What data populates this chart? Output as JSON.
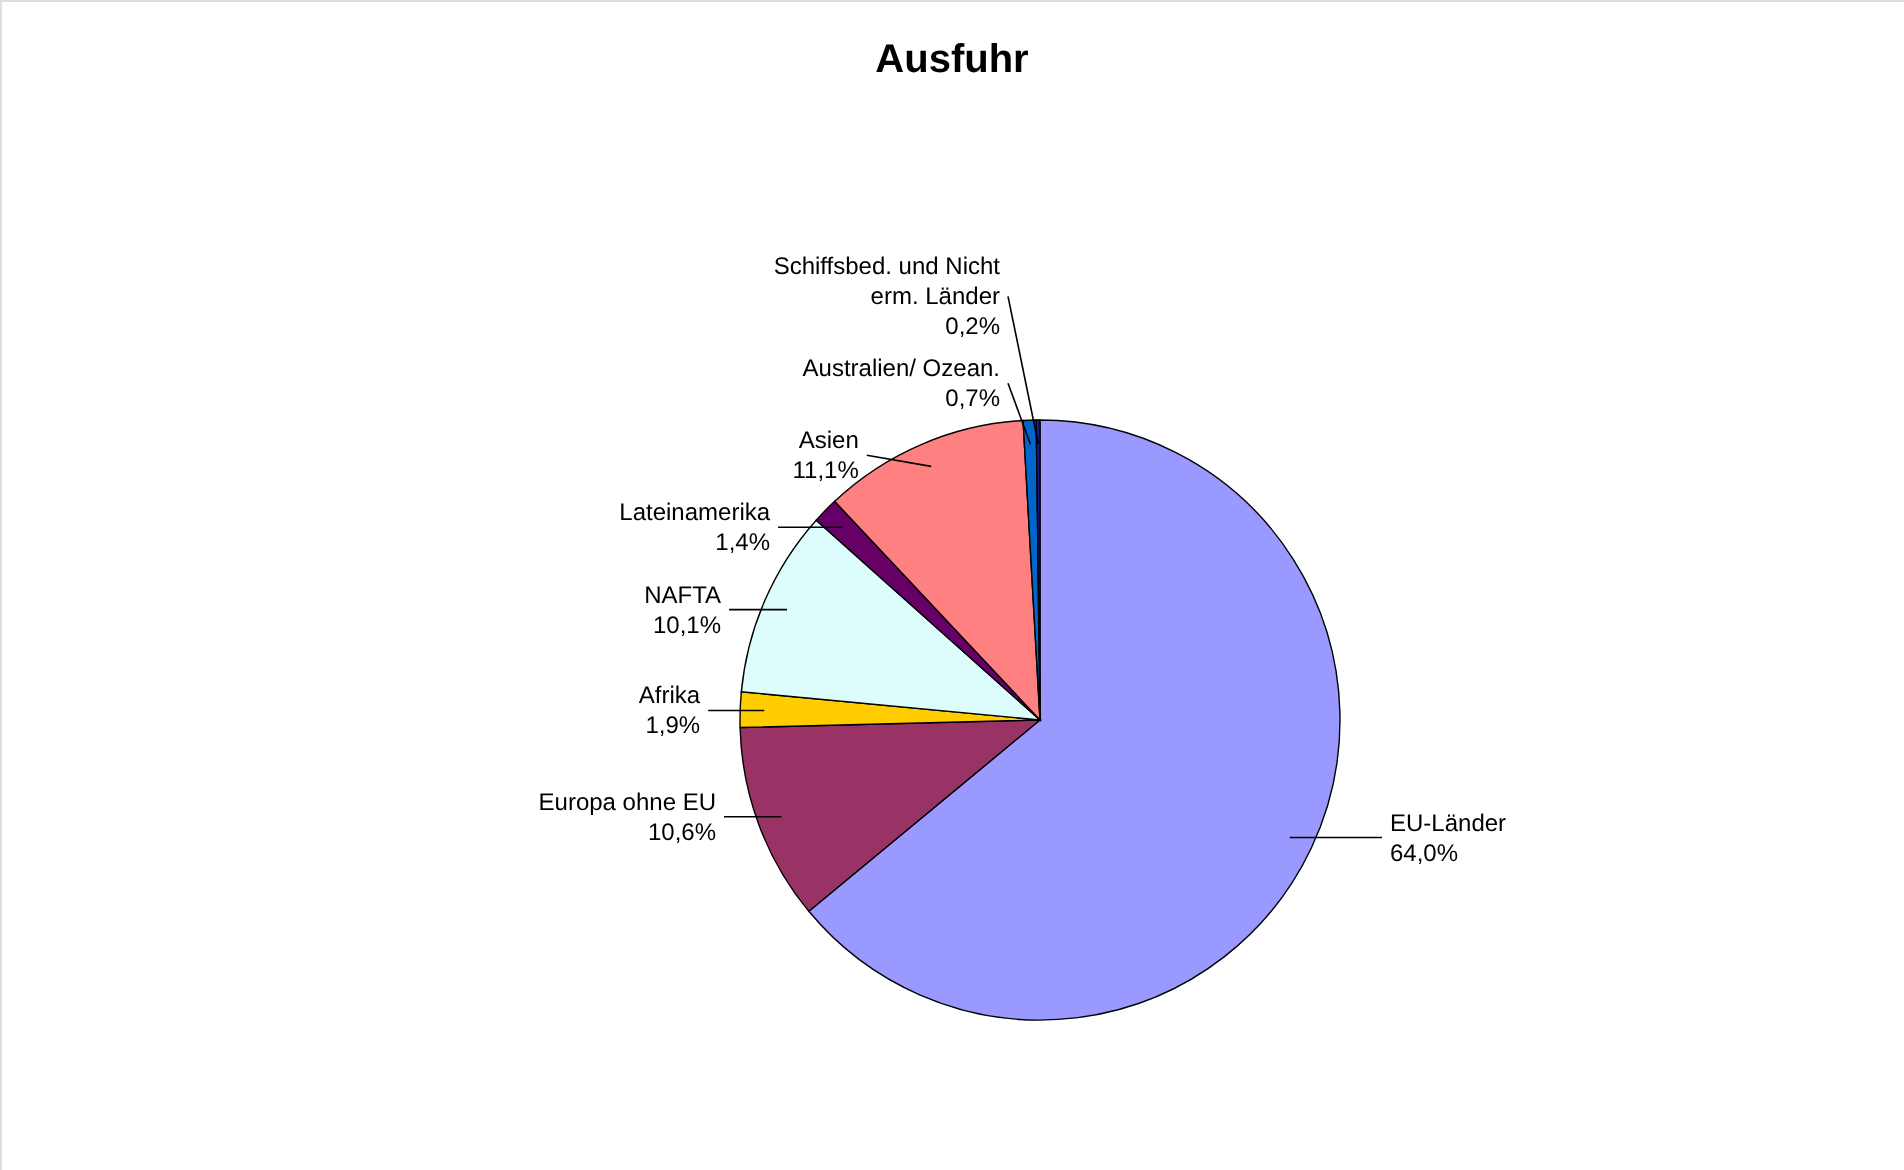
{
  "chart_data": {
    "type": "pie",
    "title": "Ausfuhr",
    "categories": [
      "EU-Länder",
      "Europa ohne EU",
      "Afrika",
      "NAFTA",
      "Lateinamerika",
      "Asien",
      "Australien/ Ozean.",
      "Schiffsbed. und Nicht erm. Länder"
    ],
    "values": [
      64.0,
      10.6,
      1.9,
      10.1,
      1.4,
      11.1,
      0.7,
      0.2
    ],
    "value_labels": [
      "64,0%",
      "10,6%",
      "1,9%",
      "10,1%",
      "1,4%",
      "11,1%",
      "0,7%",
      "0,2%"
    ],
    "colors": [
      "#9999ff",
      "#993366",
      "#ffcc00",
      "#ddfcfc",
      "#660066",
      "#ff8080",
      "#0066cc",
      "#1a1a80"
    ]
  }
}
